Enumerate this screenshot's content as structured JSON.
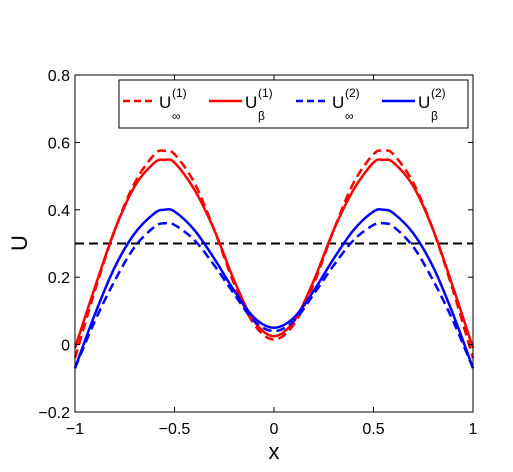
{
  "chart_data": {
    "type": "line",
    "xlabel": "x",
    "ylabel": "U",
    "xlim": [
      -1,
      1
    ],
    "ylim": [
      -0.2,
      0.8
    ],
    "xticks": [
      -1,
      -0.5,
      0,
      0.5,
      1
    ],
    "xtick_labels": [
      "−1",
      "−0.5",
      "0",
      "0.5",
      "1"
    ],
    "yticks": [
      -0.2,
      0,
      0.2,
      0.4,
      0.6,
      0.8
    ],
    "ytick_labels": [
      "−0.2",
      "0",
      "0.2",
      "0.4",
      "0.6",
      "0.8"
    ],
    "grid": false,
    "legend_position": "top",
    "x": [
      -1,
      -0.9,
      -0.8,
      -0.7,
      -0.6,
      -0.55,
      -0.5,
      -0.4,
      -0.3,
      -0.2,
      -0.1,
      0,
      0.1,
      0.2,
      0.3,
      0.4,
      0.5,
      0.55,
      0.6,
      0.7,
      0.8,
      0.9,
      1
    ],
    "series": [
      {
        "legend_base": "U",
        "legend_sup": "(1)",
        "legend_sub": "∞",
        "color": "#ff0000",
        "dash": "dashed",
        "values": [
          -0.04,
          0.16,
          0.34,
          0.48,
          0.565,
          0.575,
          0.565,
          0.48,
          0.34,
          0.18,
          0.06,
          0.015,
          0.06,
          0.18,
          0.34,
          0.48,
          0.565,
          0.575,
          0.565,
          0.48,
          0.34,
          0.16,
          -0.04
        ]
      },
      {
        "legend_base": "U",
        "legend_sup": "(1)",
        "legend_sub": "β",
        "color": "#ff0000",
        "dash": "solid",
        "values": [
          -0.01,
          0.17,
          0.34,
          0.47,
          0.54,
          0.548,
          0.54,
          0.46,
          0.34,
          0.19,
          0.07,
          0.025,
          0.07,
          0.19,
          0.34,
          0.46,
          0.54,
          0.548,
          0.54,
          0.47,
          0.34,
          0.17,
          -0.01
        ]
      },
      {
        "legend_base": "U",
        "legend_sup": "(2)",
        "legend_sub": "∞",
        "color": "#0000ff",
        "dash": "dashed",
        "values": [
          -0.07,
          0.07,
          0.19,
          0.29,
          0.35,
          0.36,
          0.355,
          0.31,
          0.235,
          0.15,
          0.07,
          0.04,
          0.07,
          0.15,
          0.235,
          0.31,
          0.355,
          0.36,
          0.35,
          0.29,
          0.19,
          0.07,
          -0.07
        ]
      },
      {
        "legend_base": "U",
        "legend_sup": "(2)",
        "legend_sub": "β",
        "color": "#0000ff",
        "dash": "solid",
        "values": [
          -0.07,
          0.09,
          0.23,
          0.33,
          0.39,
          0.4,
          0.395,
          0.34,
          0.255,
          0.16,
          0.08,
          0.05,
          0.08,
          0.16,
          0.255,
          0.34,
          0.395,
          0.4,
          0.39,
          0.33,
          0.23,
          0.09,
          -0.07
        ]
      }
    ],
    "reference_lines": [
      {
        "orientation": "horizontal",
        "y": 0.3,
        "color": "#000000",
        "dash": "dashed"
      }
    ]
  }
}
